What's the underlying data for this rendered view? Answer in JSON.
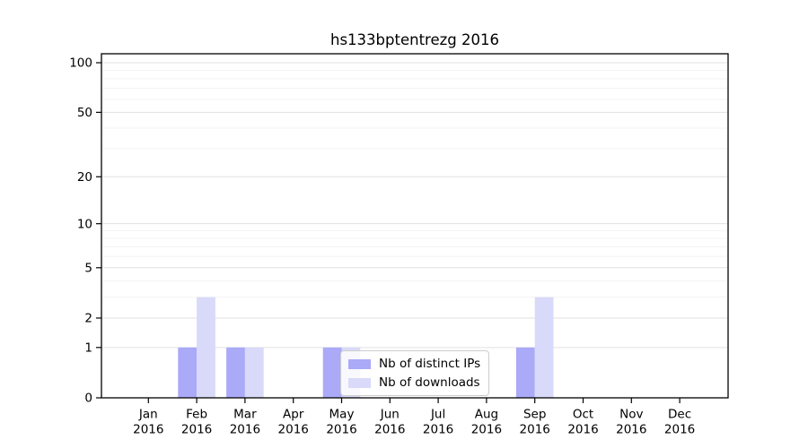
{
  "title": "hs133bptentrezg 2016",
  "chart_data": {
    "type": "bar",
    "title": "hs133bptentrezg 2016",
    "categories": [
      "Jan",
      "Feb",
      "Mar",
      "Apr",
      "May",
      "Jun",
      "Jul",
      "Aug",
      "Sep",
      "Oct",
      "Nov",
      "Dec"
    ],
    "year": "2016",
    "series": [
      {
        "name": "Nb of distinct IPs",
        "color": "#aaaaf8",
        "values": [
          0,
          1,
          1,
          0,
          1,
          0,
          0,
          0,
          1,
          0,
          0,
          0
        ]
      },
      {
        "name": "Nb of downloads",
        "color": "#d9d9f9",
        "values": [
          0,
          3,
          1,
          0,
          1,
          0,
          0,
          0,
          3,
          0,
          0,
          0
        ]
      }
    ],
    "yticks": [
      0,
      1,
      2,
      5,
      10,
      20,
      50,
      100
    ],
    "minor_gridlines": [
      3,
      4,
      6,
      7,
      8,
      9,
      30,
      40,
      60,
      70,
      80,
      90
    ],
    "scale": "log1p",
    "ylim": [
      0,
      113
    ],
    "xlabel": "",
    "ylabel": "",
    "grid": true,
    "legend_position": "lower center inside"
  },
  "colors": {
    "grid_major": "#e0e0e0",
    "grid_minor": "#f3f3f3",
    "axis": "#000000",
    "text": "#000000",
    "background": "#ffffff"
  }
}
